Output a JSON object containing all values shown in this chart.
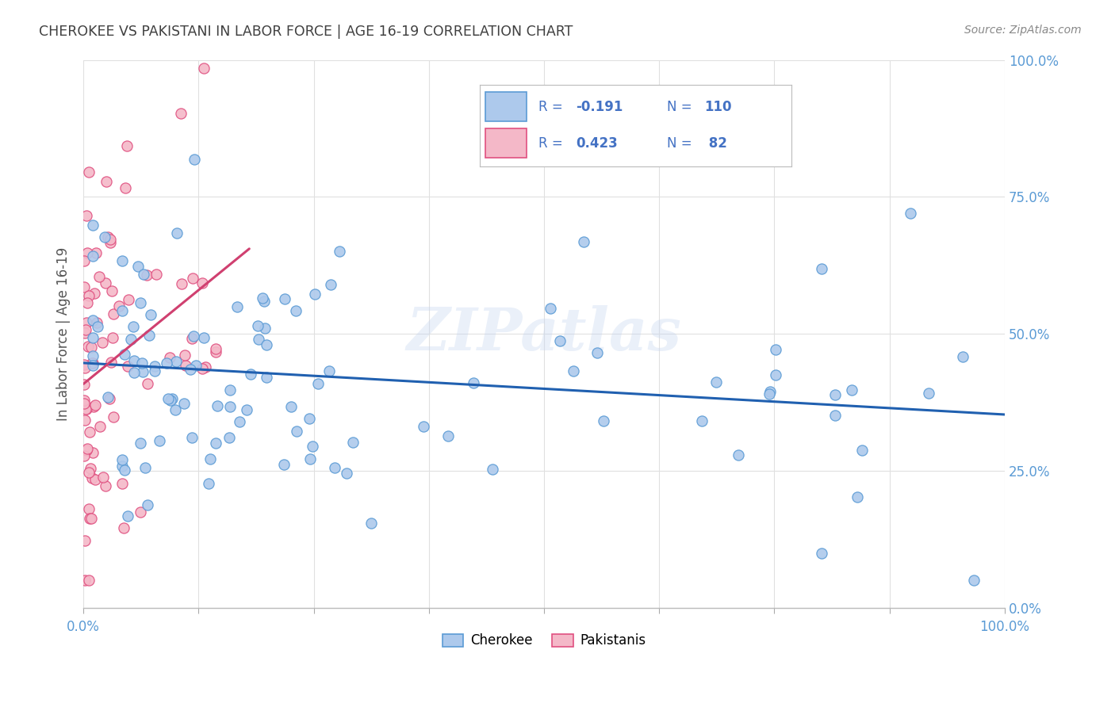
{
  "title": "CHEROKEE VS PAKISTANI IN LABOR FORCE | AGE 16-19 CORRELATION CHART",
  "source": "Source: ZipAtlas.com",
  "ylabel": "In Labor Force | Age 16-19",
  "ytick_labels": [
    "0.0%",
    "25.0%",
    "50.0%",
    "75.0%",
    "100.0%"
  ],
  "ytick_values": [
    0.0,
    0.25,
    0.5,
    0.75,
    1.0
  ],
  "legend_cherokee": "Cherokee",
  "legend_pakistanis": "Pakistanis",
  "cherokee_fill": "#adc9ec",
  "cherokee_edge": "#5b9bd5",
  "pakistani_fill": "#f4b8c8",
  "pakistani_edge": "#e05080",
  "cherokee_line_color": "#2060b0",
  "pakistani_line_color": "#d04070",
  "legend_text_color": "#4472c4",
  "legend_R_negative": "-0.191",
  "legend_R_positive": "0.423",
  "legend_N_cherokee": "110",
  "legend_N_pakistani": "82",
  "watermark": "ZIPatlas",
  "title_color": "#404040",
  "axis_tick_color": "#5b9bd5",
  "grid_color": "#e0e0e0",
  "background_color": "#ffffff"
}
